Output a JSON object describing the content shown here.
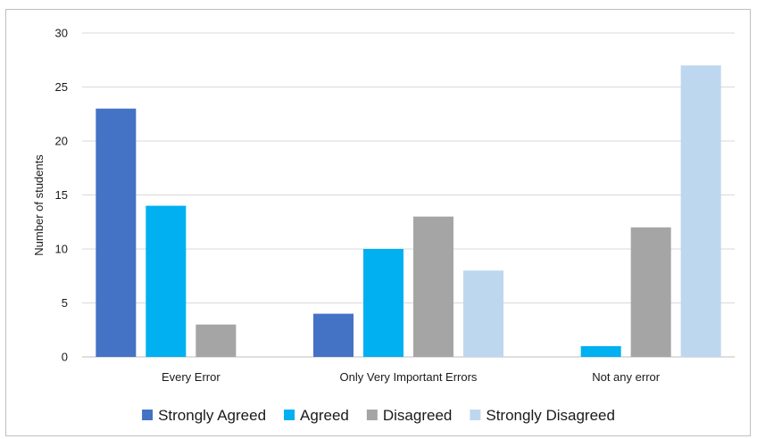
{
  "chart_data": {
    "type": "bar",
    "title": "",
    "xlabel": "",
    "ylabel": "Number of students",
    "ylim": [
      0,
      30
    ],
    "yticks": [
      0,
      5,
      10,
      15,
      20,
      25,
      30
    ],
    "grid": true,
    "legend_position": "bottom",
    "categories": [
      "Every Error",
      "Only Very Important Errors",
      "Not any error"
    ],
    "series": [
      {
        "name": "Strongly Agreed",
        "color": "#4472c4",
        "values": [
          23,
          4,
          0
        ]
      },
      {
        "name": "Agreed",
        "color": "#00b0f0",
        "values": [
          14,
          10,
          1
        ]
      },
      {
        "name": "Disagreed",
        "color": "#a5a5a5",
        "values": [
          3,
          13,
          12
        ]
      },
      {
        "name": "Strongly Disagreed",
        "color": "#bdd7ee",
        "values": [
          0,
          8,
          27
        ]
      }
    ]
  }
}
